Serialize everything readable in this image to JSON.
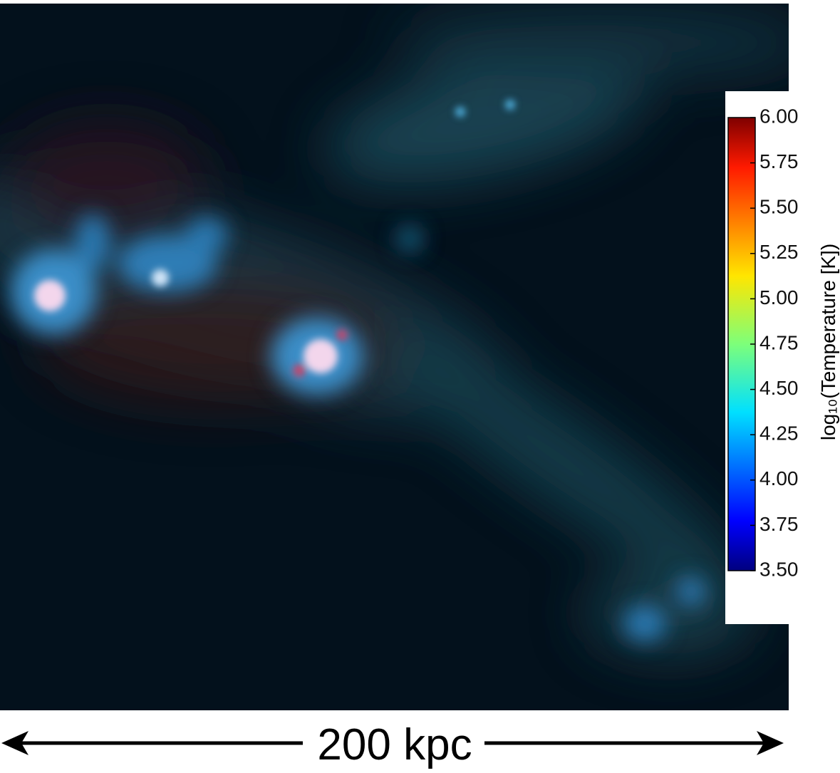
{
  "chart_data": {
    "type": "image",
    "colorbar": {
      "label": "log₁₀(Temperature [K])",
      "lim": [
        3.5,
        6.0
      ],
      "ticks": [
        {
          "value": 3.5,
          "label": "3.50"
        },
        {
          "value": 3.75,
          "label": "3.75"
        },
        {
          "value": 4.0,
          "label": "4.00"
        },
        {
          "value": 4.25,
          "label": "4.25"
        },
        {
          "value": 4.5,
          "label": "4.50"
        },
        {
          "value": 4.75,
          "label": "4.75"
        },
        {
          "value": 5.0,
          "label": "5.00"
        },
        {
          "value": 5.25,
          "label": "5.25"
        },
        {
          "value": 5.5,
          "label": "5.50"
        },
        {
          "value": 5.75,
          "label": "5.75"
        },
        {
          "value": 6.0,
          "label": "6.00"
        }
      ]
    },
    "scale_bar": "200 kpc"
  }
}
